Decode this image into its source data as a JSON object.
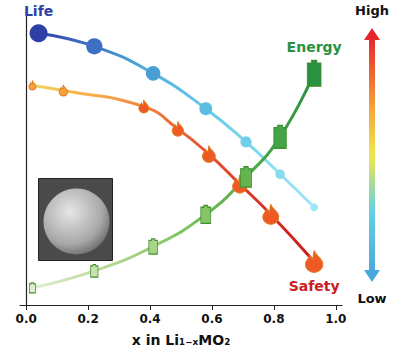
{
  "chart_data": {
    "type": "line",
    "x_label": "x in Li₁₋ₓMO₂",
    "xlim": [
      -0.02,
      1.02
    ],
    "xticks": [
      {
        "value": 0,
        "label": "0.0"
      },
      0.2,
      0.4,
      0.6,
      0.8,
      {
        "value": 1,
        "label": "1.0"
      }
    ],
    "ylim": [
      0,
      1
    ],
    "tick_labels": "x",
    "grid": false,
    "scale_labels": {
      "top": "High",
      "bottom": "Low"
    },
    "series": [
      {
        "name": "Life",
        "marker": "circle",
        "line_style": "solid",
        "x": [
          0.04,
          0.22,
          0.41,
          0.58,
          0.71,
          0.82,
          0.93
        ],
        "values": [
          0.915,
          0.871,
          0.78,
          0.661,
          0.549,
          0.441,
          0.329
        ],
        "colors": [
          "#2f3fa8",
          "#3d6fc4",
          "#4a9fd6",
          "#5cbde3",
          "#6fcfe9",
          "#86dcef",
          "#9fe6f5"
        ]
      },
      {
        "name": "Safety",
        "marker": "flame",
        "line_style": "solid",
        "x": [
          0.02,
          0.12,
          0.38,
          0.49,
          0.59,
          0.69,
          0.79,
          0.93
        ],
        "values": [
          0.739,
          0.722,
          0.668,
          0.593,
          0.508,
          0.407,
          0.305,
          0.146
        ],
        "colors": [
          "#f4d35e",
          "#f5b94a",
          "#f5a04a",
          "#f07d3c",
          "#ea5a34",
          "#e0402c",
          "#d32a22",
          "#c81e1e"
        ]
      },
      {
        "name": "Energy",
        "marker": "battery",
        "line_style": "solid",
        "x": [
          0.02,
          0.22,
          0.41,
          0.58,
          0.71,
          0.82,
          0.93
        ],
        "values": [
          0.058,
          0.115,
          0.197,
          0.305,
          0.431,
          0.566,
          0.78
        ],
        "colors": [
          "#dfeccd",
          "#c8e2ad",
          "#a8d487",
          "#86c566",
          "#64b54e",
          "#45a446",
          "#2a9142"
        ]
      }
    ]
  }
}
